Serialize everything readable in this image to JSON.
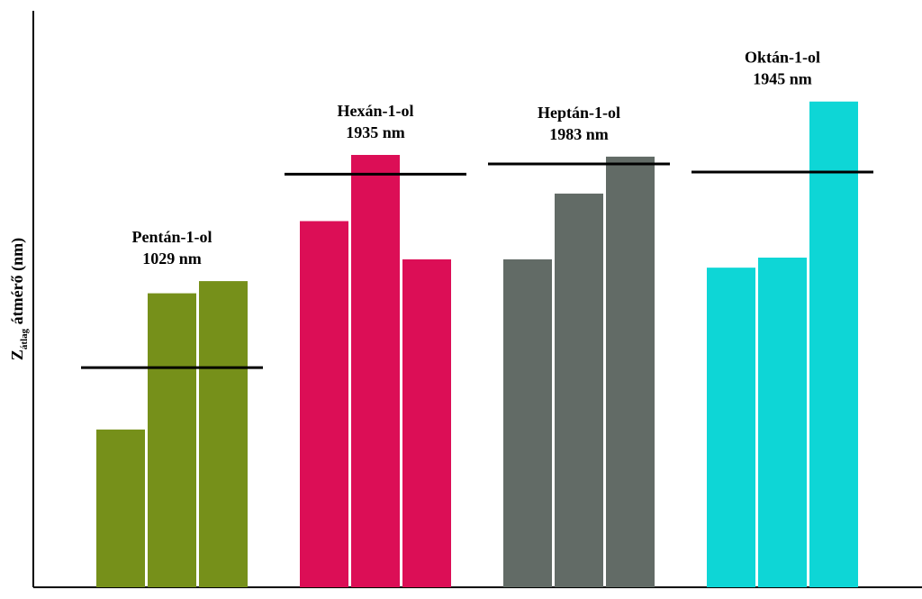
{
  "chart_data": {
    "type": "bar",
    "title": "",
    "xlabel": "",
    "ylabel": {
      "main": "Z",
      "subscript": "átlag",
      "rest": " átmérő (nm)"
    },
    "ylim": [
      0,
      2700
    ],
    "grid": false,
    "legend": "none",
    "groups": [
      {
        "name": "Pentán-1-ol",
        "mean_label": "1029 nm",
        "mean": 1029,
        "values": [
          739,
          1377,
          1434
        ],
        "color": "#76901a"
      },
      {
        "name": "Hexán-1-ol",
        "mean_label": "1935 nm",
        "mean": 1935,
        "values": [
          1715,
          2025,
          1536
        ],
        "color": "#dc0e56"
      },
      {
        "name": "Heptán-1-ol",
        "mean_label": "1983 nm",
        "mean": 1983,
        "values": [
          1536,
          1844,
          2017
        ],
        "color": "#626b66"
      },
      {
        "name": "Oktán-1-ol",
        "mean_label": "1945 nm",
        "mean": 1945,
        "values": [
          1497,
          1544,
          2275
        ],
        "color": "#0ed6d6"
      }
    ]
  }
}
